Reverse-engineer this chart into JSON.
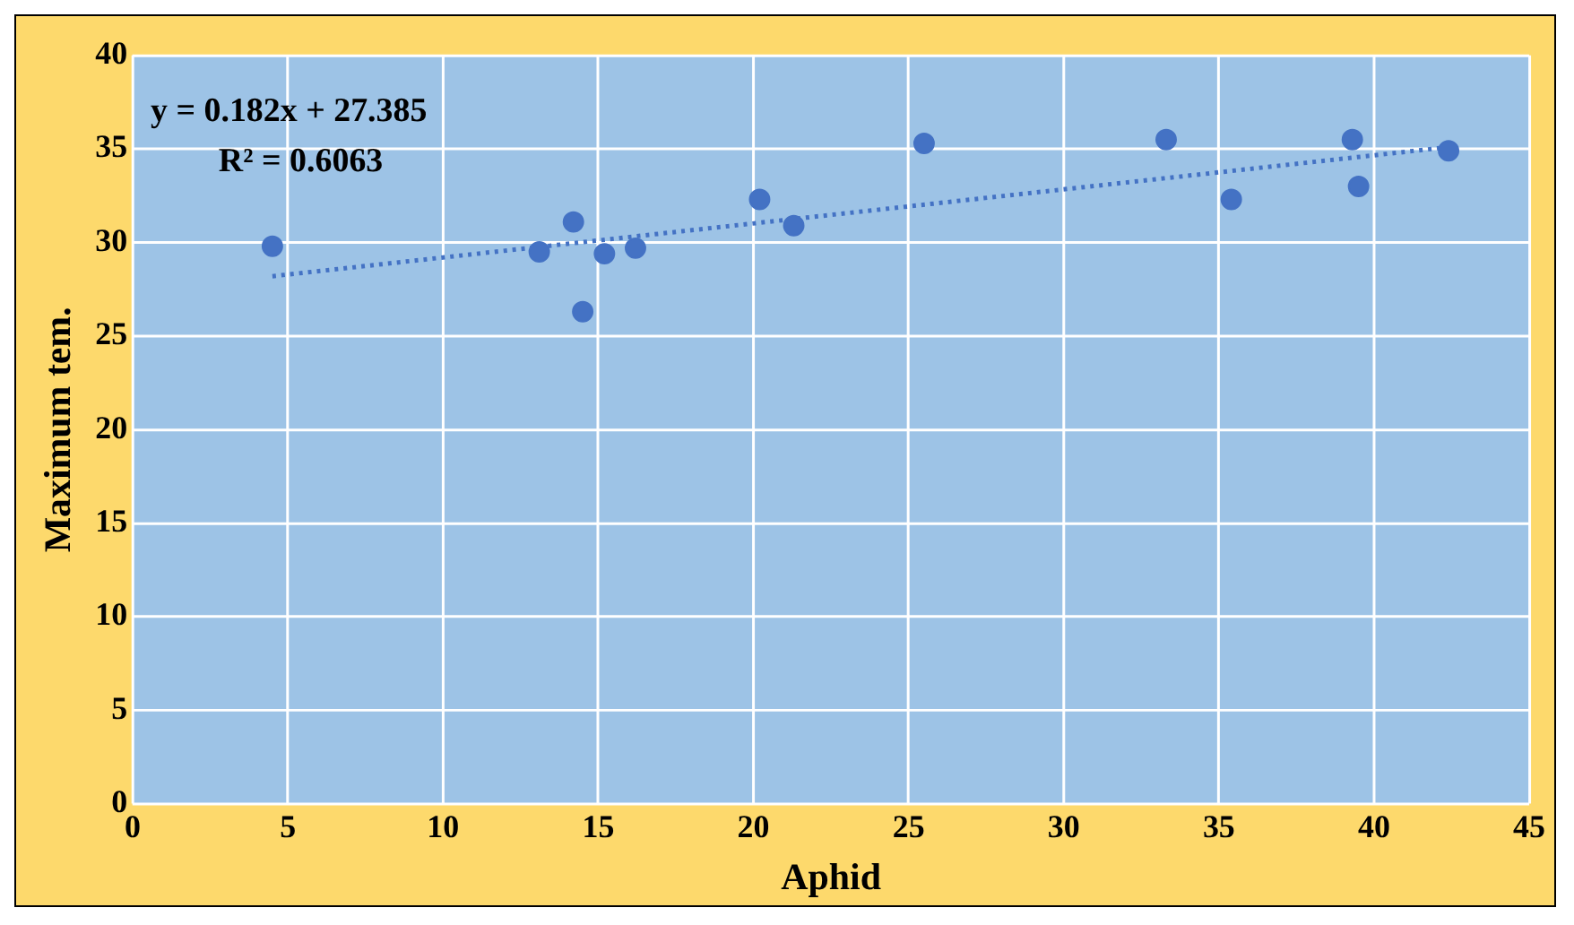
{
  "chart_data": {
    "type": "scatter",
    "xlabel": "Aphid",
    "ylabel": "Maximum tem.",
    "annotations": [
      "y = 0.182x + 27.385",
      "R² = 0.6063"
    ],
    "series": [
      {
        "color": "#4472c4",
        "x": [
          4.5,
          13.1,
          14.2,
          14.5,
          15.2,
          16.2,
          20.2,
          21.3,
          25.5,
          33.3,
          35.4,
          39.3,
          39.5,
          42.4
        ],
        "values": [
          29.8,
          29.5,
          31.1,
          26.3,
          29.4,
          29.7,
          32.3,
          30.9,
          35.3,
          35.5,
          32.3,
          35.5,
          33.0,
          34.9
        ],
        "marker": "circle"
      },
      {
        "type": "line",
        "color": "#4472c4",
        "x": [
          4.5,
          42.4
        ],
        "values": [
          28.2,
          35.1
        ],
        "line_style": "dotted",
        "marker": "none"
      }
    ],
    "xlim": [
      0,
      45
    ],
    "xticks": [
      0,
      5,
      10,
      15,
      20,
      25,
      30,
      35,
      40,
      45
    ],
    "ylim": [
      0,
      40
    ],
    "yticks": [
      0,
      5,
      10,
      15,
      20,
      25,
      30,
      35,
      40
    ],
    "grid": true,
    "legend": false
  }
}
